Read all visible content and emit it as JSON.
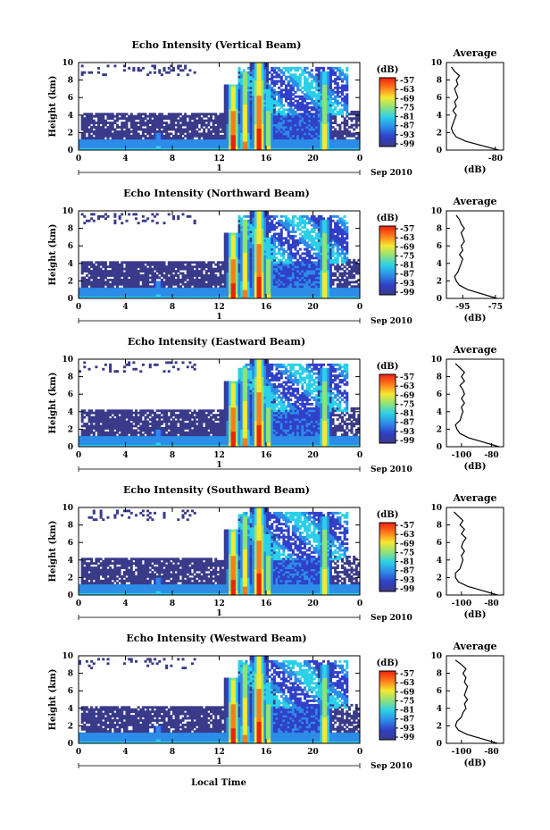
{
  "chart_data": {
    "type": "heatmap",
    "colorbar": {
      "unit": "(dB)",
      "tick_labels": [
        "-57",
        "-63",
        "-69",
        "-75",
        "-81",
        "-87",
        "-93",
        "-99"
      ],
      "colors": [
        "#f02010",
        "#ff7a1a",
        "#f5e830",
        "#8fe27a",
        "#2bd0e8",
        "#2c8ce8",
        "#3040c8",
        "#3a3a8a"
      ]
    },
    "xlabel": "Local Time",
    "date_label": "Sep 2010",
    "day_label": "1",
    "x_tick_labels": [
      "0",
      "4",
      "8",
      "12",
      "16",
      "20",
      "0"
    ],
    "x_ticks_hours": [
      0,
      4,
      8,
      12,
      16,
      20,
      24
    ],
    "ylabel": "Height (km)",
    "y_tick_labels": [
      "0",
      "2",
      "4",
      "6",
      "8",
      "10"
    ],
    "y_ticks_km": [
      0,
      2,
      4,
      6,
      8,
      10
    ],
    "ylim_km": [
      0,
      10
    ],
    "xlim_hours": [
      0,
      24
    ],
    "average_title": "Average",
    "average_xlabel": "(dB)",
    "panels": [
      {
        "title": "Echo Intensity (Vertical Beam)",
        "avg_tick_labels": [
          "-80"
        ],
        "avg_xlim": [
          -110,
          -75
        ],
        "avg_ticks": [
          -80
        ],
        "avg_profile": {
          "height_km": [
            0,
            0.5,
            1,
            1.5,
            2,
            2.5,
            3,
            3.5,
            4,
            4.5,
            5,
            5.5,
            6,
            6.5,
            7,
            7.5,
            8,
            8.5,
            9,
            9.5
          ],
          "db": [
            -78,
            -88,
            -98,
            -104,
            -106,
            -107,
            -106,
            -105,
            -104,
            -106,
            -104,
            -105,
            -103,
            -104,
            -105,
            -103,
            -104,
            -102,
            -105,
            -107
          ]
        }
      },
      {
        "title": "Echo Intensity (Northward Beam)",
        "avg_tick_labels": [
          "-95",
          "-75"
        ],
        "avg_xlim": [
          -105,
          -70
        ],
        "avg_ticks": [
          -95,
          -75
        ],
        "avg_profile": {
          "height_km": [
            0,
            0.5,
            1,
            1.5,
            2,
            2.5,
            3,
            3.5,
            4,
            4.5,
            5,
            5.5,
            6,
            6.5,
            7,
            7.5,
            8,
            8.5,
            9,
            9.5
          ],
          "db": [
            -74,
            -83,
            -92,
            -97,
            -99,
            -100,
            -98,
            -97,
            -96,
            -95,
            -97,
            -95,
            -96,
            -94,
            -95,
            -96,
            -94,
            -96,
            -97,
            -99
          ]
        }
      },
      {
        "title": "Echo Intensity (Eastward Beam)",
        "avg_tick_labels": [
          "-100",
          "-80"
        ],
        "avg_xlim": [
          -110,
          -72
        ],
        "avg_ticks": [
          -100,
          -80
        ],
        "avg_profile": {
          "height_km": [
            0,
            0.5,
            1,
            1.5,
            2,
            2.5,
            3,
            3.5,
            4,
            4.5,
            5,
            5.5,
            6,
            6.5,
            7,
            7.5,
            8,
            8.5,
            9,
            9.5
          ],
          "db": [
            -75,
            -85,
            -95,
            -101,
            -103,
            -104,
            -101,
            -100,
            -99,
            -100,
            -98,
            -100,
            -98,
            -99,
            -101,
            -98,
            -100,
            -98,
            -101,
            -104
          ]
        }
      },
      {
        "title": "Echo Intensity (Southward Beam)",
        "avg_tick_labels": [
          "-100",
          "-80"
        ],
        "avg_xlim": [
          -110,
          -72
        ],
        "avg_ticks": [
          -100,
          -80
        ],
        "avg_profile": {
          "height_km": [
            0,
            0.5,
            1,
            1.5,
            2,
            2.5,
            3,
            3.5,
            4,
            4.5,
            5,
            5.5,
            6,
            6.5,
            7,
            7.5,
            8,
            8.5,
            9,
            9.5
          ],
          "db": [
            -76,
            -86,
            -96,
            -102,
            -104,
            -104,
            -101,
            -100,
            -99,
            -100,
            -98,
            -100,
            -99,
            -97,
            -100,
            -98,
            -101,
            -99,
            -102,
            -105
          ]
        }
      },
      {
        "title": "Echo Intensity (Westward Beam)",
        "avg_tick_labels": [
          "-100",
          "-80"
        ],
        "avg_xlim": [
          -110,
          -72
        ],
        "avg_ticks": [
          -100,
          -80
        ],
        "avg_profile": {
          "height_km": [
            0,
            0.5,
            1,
            1.5,
            2,
            2.5,
            3,
            3.5,
            4,
            4.5,
            5,
            5.5,
            6,
            6.5,
            7,
            7.5,
            8,
            8.5,
            9,
            9.5
          ],
          "db": [
            -76,
            -86,
            -96,
            -102,
            -104,
            -103,
            -100,
            -99,
            -97,
            -98,
            -96,
            -98,
            -97,
            -96,
            -98,
            -97,
            -99,
            -97,
            -100,
            -104
          ]
        }
      }
    ]
  }
}
